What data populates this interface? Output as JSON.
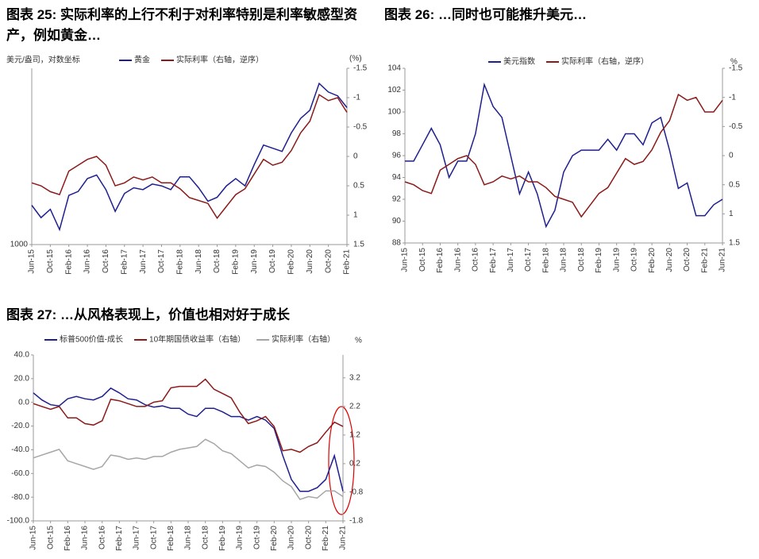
{
  "chart_data": [
    {
      "type": "line",
      "title": "图表 25:  实际利率的上行不利于对利率特别是利率敏感型资产，例如黄金…",
      "y_label": "美元/盎司，对数坐标",
      "y2_label": "(%)",
      "categories": [
        "Jun-15",
        null,
        "Oct-15",
        null,
        "Feb-16",
        null,
        "Jun-16",
        null,
        "Oct-16",
        null,
        "Feb-17",
        null,
        "Jun-17",
        null,
        "Oct-17",
        null,
        "Feb-18",
        null,
        "Jun-18",
        null,
        "Oct-18",
        null,
        "Feb-19",
        null,
        "Jun-19",
        null,
        "Oct-19",
        null,
        "Feb-20",
        null,
        "Jun-20",
        null,
        "Oct-20",
        null,
        "Feb-21"
      ],
      "ylog": true,
      "ylim": [
        1000,
        2100
      ],
      "yticks": [
        1000
      ],
      "y2lim": [
        -1.5,
        1.5
      ],
      "y2_inverted": true,
      "y2ticks": [
        -1.5,
        -1,
        -0.5,
        0,
        0.5,
        1,
        1.5
      ],
      "series": [
        {
          "name": "黄金",
          "color": "#1f1f8f",
          "values": [
            1180,
            1120,
            1160,
            1065,
            1230,
            1250,
            1320,
            1340,
            1260,
            1150,
            1240,
            1270,
            1260,
            1290,
            1280,
            1260,
            1330,
            1330,
            1270,
            1200,
            1220,
            1280,
            1320,
            1280,
            1400,
            1520,
            1500,
            1480,
            1600,
            1700,
            1760,
            1970,
            1900,
            1870,
            1780
          ]
        },
        {
          "name": "实际利率（右轴，逆序）",
          "color": "#8b1a1a",
          "axis": "y2",
          "values": [
            0.45,
            0.5,
            0.6,
            0.65,
            0.25,
            0.15,
            0.05,
            0.0,
            0.15,
            0.5,
            0.45,
            0.35,
            0.4,
            0.35,
            0.45,
            0.45,
            0.55,
            0.7,
            0.75,
            0.8,
            1.05,
            0.85,
            0.65,
            0.55,
            0.3,
            0.05,
            0.15,
            0.1,
            -0.1,
            -0.4,
            -0.6,
            -1.05,
            -0.95,
            -1.0,
            -0.75
          ]
        }
      ]
    },
    {
      "type": "line",
      "title": "图表 26: …同时也可能推升美元…",
      "y2_label": "%",
      "categories": [
        "Jun-15",
        null,
        "Oct-15",
        null,
        "Feb-16",
        null,
        "Jun-16",
        null,
        "Oct-16",
        null,
        "Feb-17",
        null,
        "Jun-17",
        null,
        "Oct-17",
        null,
        "Feb-18",
        null,
        "Jun-18",
        null,
        "Oct-18",
        null,
        "Feb-19",
        null,
        "Jun-19",
        null,
        "Oct-19",
        null,
        "Feb-20",
        null,
        "Jun-20",
        null,
        "Oct-20",
        null,
        "Feb-21",
        null,
        "Jun-21"
      ],
      "ylim": [
        88,
        104
      ],
      "yticks": [
        88,
        90,
        92,
        94,
        96,
        98,
        100,
        102,
        104
      ],
      "y2lim": [
        -1.5,
        1.5
      ],
      "y2_inverted": true,
      "y2ticks": [
        -1.5,
        -1,
        -0.5,
        0,
        0.5,
        1,
        1.5
      ],
      "series": [
        {
          "name": "美元指数",
          "color": "#1f1f8f",
          "values": [
            95.5,
            95.5,
            97,
            98.5,
            97,
            94,
            95.5,
            95.5,
            98,
            102.5,
            100.5,
            99.5,
            96,
            92.5,
            94.5,
            92.5,
            89.5,
            91,
            94.5,
            96,
            96.5,
            96.5,
            96.5,
            97.5,
            96.5,
            98,
            98,
            97,
            99,
            99.5,
            96.5,
            93,
            93.5,
            90.5,
            90.5,
            91.5,
            92
          ]
        },
        {
          "name": "实际利率（右轴，逆序）",
          "color": "#8b1a1a",
          "axis": "y2",
          "values": [
            0.45,
            0.5,
            0.6,
            0.65,
            0.25,
            0.15,
            0.05,
            0.0,
            0.15,
            0.5,
            0.45,
            0.35,
            0.4,
            0.35,
            0.45,
            0.45,
            0.55,
            0.7,
            0.75,
            0.8,
            1.05,
            0.85,
            0.65,
            0.55,
            0.3,
            0.05,
            0.15,
            0.1,
            -0.1,
            -0.4,
            -0.6,
            -1.05,
            -0.95,
            -1.0,
            -0.75,
            -0.75,
            -0.95
          ]
        }
      ]
    },
    {
      "type": "line",
      "title": "图表 27: …从风格表现上，价值也相对好于成长",
      "y2_label": "%",
      "negative_tick_color": "#e00000",
      "categories": [
        "Jun-15",
        null,
        "Oct-15",
        null,
        "Feb-16",
        null,
        "Jun-16",
        null,
        "Oct-16",
        null,
        "Feb-17",
        null,
        "Jun-17",
        null,
        "Oct-17",
        null,
        "Feb-18",
        null,
        "Jun-18",
        null,
        "Oct-18",
        null,
        "Feb-19",
        null,
        "Jun-19",
        null,
        "Oct-19",
        null,
        "Feb-20",
        null,
        "Jun-20",
        null,
        "Oct-20",
        null,
        "Feb-21",
        null,
        "Jun-21"
      ],
      "ylim": [
        -100,
        40
      ],
      "yticks": [
        {
          "value": 40,
          "label": "40.0"
        },
        {
          "value": 20,
          "label": "20.0"
        },
        {
          "value": 0,
          "label": "0.0"
        },
        {
          "value": -20,
          "label": "-20.0"
        },
        {
          "value": -40,
          "label": "-40.0"
        },
        {
          "value": -60,
          "label": "-60.0"
        },
        {
          "value": -80,
          "label": "-80.0"
        },
        {
          "value": -100,
          "label": "-100.0"
        }
      ],
      "y2lim": [
        -1.8,
        4.0
      ],
      "y2ticks": [
        3.2,
        2.2,
        1.2,
        0.2,
        -0.8,
        -1.8
      ],
      "series": [
        {
          "name": "标普500价值-成长",
          "color": "#1f1f8f",
          "values": [
            8,
            2,
            -2,
            -3,
            3,
            5,
            3,
            2,
            5,
            12,
            8,
            3,
            2,
            -2,
            -4,
            -3,
            -5,
            -5,
            -10,
            -12,
            -5,
            -5,
            -8,
            -12,
            -12,
            -15,
            -12,
            -15,
            -22,
            -45,
            -65,
            -75,
            -75,
            -72,
            -65,
            -45,
            -75
          ]
        },
        {
          "name": "10年期国债收益率（右轴）",
          "color": "#8b1a1a",
          "axis": "y2",
          "values": [
            2.3,
            2.2,
            2.1,
            2.2,
            1.8,
            1.8,
            1.6,
            1.55,
            1.7,
            2.45,
            2.4,
            2.3,
            2.2,
            2.2,
            2.35,
            2.4,
            2.85,
            2.9,
            2.9,
            2.9,
            3.15,
            2.8,
            2.65,
            2.5,
            2.0,
            1.6,
            1.7,
            1.85,
            1.5,
            0.65,
            0.7,
            0.6,
            0.8,
            0.93,
            1.3,
            1.65,
            1.5
          ]
        },
        {
          "name": "实际利率（右轴）",
          "color": "#a6a6a6",
          "axis": "y2",
          "values": [
            0.4,
            0.5,
            0.6,
            0.7,
            0.3,
            0.2,
            0.1,
            0.0,
            0.1,
            0.5,
            0.45,
            0.35,
            0.4,
            0.35,
            0.45,
            0.45,
            0.6,
            0.7,
            0.75,
            0.8,
            1.05,
            0.9,
            0.65,
            0.55,
            0.3,
            0.05,
            0.15,
            0.1,
            -0.1,
            -0.4,
            -0.6,
            -1.05,
            -0.95,
            -1.0,
            -0.75,
            -0.75,
            -0.95
          ]
        }
      ]
    }
  ]
}
